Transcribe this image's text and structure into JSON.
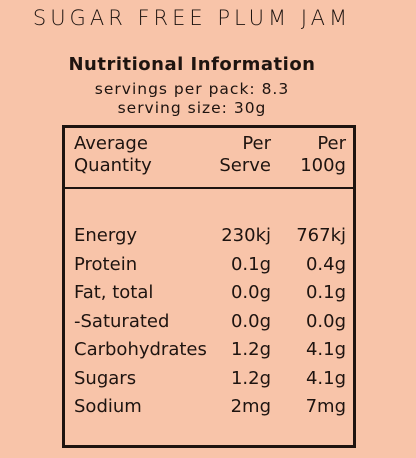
{
  "title": "SUGAR FREE PLUM JAM",
  "panel": {
    "heading": "Nutritional Information",
    "servings_per_pack": "servings per pack: 8.3",
    "serving_size": "serving size: 30g"
  },
  "table": {
    "header": [
      [
        "Average",
        "Quantity"
      ],
      [
        "Per",
        "Serve"
      ],
      [
        "Per",
        "100g"
      ]
    ],
    "rows": [
      [
        "Energy",
        "230kj",
        "767kj"
      ],
      [
        "Protein",
        "0.1g",
        "0.4g"
      ],
      [
        "Fat, total",
        "0.0g",
        "0.1g"
      ],
      [
        "-Saturated",
        "0.0g",
        "0.0g"
      ],
      [
        "Carbohydrates",
        "1.2g",
        "4.1g"
      ],
      [
        "Sugars",
        "1.2g",
        "4.1g"
      ],
      [
        "Sodium",
        "2mg",
        "7mg"
      ]
    ]
  }
}
